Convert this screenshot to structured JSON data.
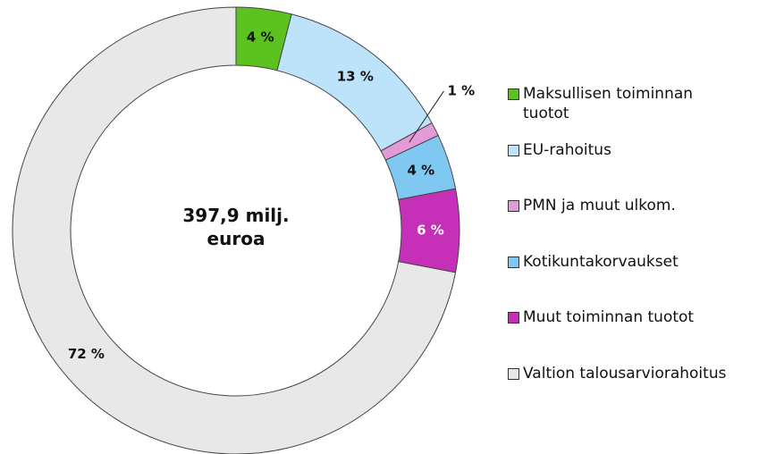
{
  "chart_data": {
    "type": "donut",
    "center_label": "397,9 milj. euroa",
    "categories": [
      "Maksullisen toiminnan tuotot",
      "EU-rahoitus",
      "PMN ja muut ulkom.",
      "Kotikuntakorvaukset",
      "Muut toiminnan tuotot",
      "Valtion talousarviorahoitus"
    ],
    "values": [
      4,
      13,
      1,
      4,
      6,
      72
    ],
    "value_labels": [
      "4 %",
      "13 %",
      "1 %",
      "4 %",
      "6 %",
      "72 %"
    ],
    "colors": [
      "#5cc21f",
      "#bde3fb",
      "#e59ad8",
      "#7ec8f2",
      "#c62fb8",
      "#e8e8e8"
    ],
    "legend": "right"
  }
}
